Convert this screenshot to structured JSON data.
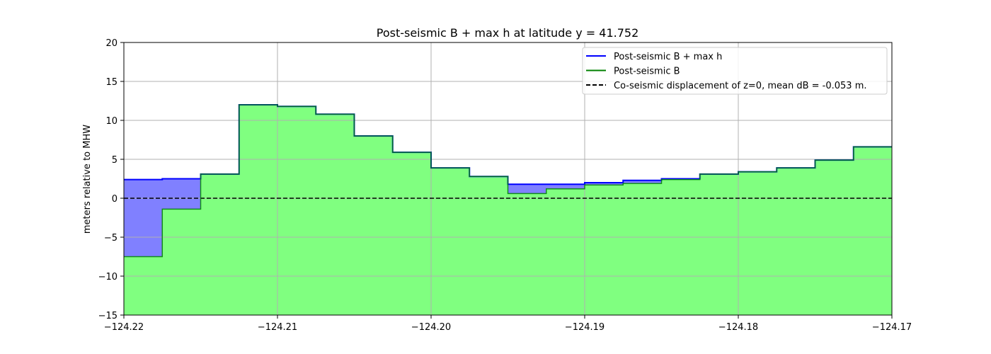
{
  "chart_data": {
    "type": "area",
    "title": "Post-seismic B + max h at latitude y = 41.752",
    "xlabel": "",
    "ylabel": "meters relative to MHW",
    "xlim": [
      -124.22,
      -124.17
    ],
    "ylim": [
      -15,
      20
    ],
    "grid": true,
    "legend_placement": "top-right",
    "x_ticks": [
      "−124.22",
      "−124.21",
      "−124.20",
      "−124.19",
      "−124.18",
      "−124.17"
    ],
    "x_tick_values": [
      -124.22,
      -124.21,
      -124.2,
      -124.19,
      -124.18,
      -124.17
    ],
    "y_ticks": [
      "−15",
      "−10",
      "−5",
      "0",
      "5",
      "10",
      "15",
      "20"
    ],
    "y_tick_values": [
      -15,
      -10,
      -5,
      0,
      5,
      10,
      15,
      20
    ],
    "x": [
      -124.22,
      -124.2175,
      -124.215,
      -124.2125,
      -124.21,
      -124.2075,
      -124.205,
      -124.2025,
      -124.2,
      -124.1975,
      -124.195,
      -124.1925,
      -124.19,
      -124.1875,
      -124.185,
      -124.1825,
      -124.18,
      -124.1775,
      -124.175,
      -124.1725
    ],
    "x_end": -124.17,
    "series": [
      {
        "name": "Post-seismic B + max h",
        "color": "#0000ff",
        "fill": "#8080ff",
        "values": [
          2.4,
          2.5,
          3.1,
          12.0,
          11.8,
          10.8,
          8.0,
          5.9,
          3.9,
          2.8,
          1.8,
          1.8,
          2.0,
          2.3,
          2.5,
          3.1,
          3.4,
          3.9,
          4.9,
          6.6
        ]
      },
      {
        "name": "Post-seismic B",
        "color": "#008000",
        "fill": "#80ff80",
        "values": [
          -7.5,
          -1.4,
          3.1,
          12.0,
          11.8,
          10.8,
          8.0,
          5.9,
          3.9,
          2.8,
          0.6,
          1.2,
          1.7,
          1.9,
          2.4,
          3.1,
          3.4,
          3.9,
          4.9,
          6.6
        ]
      }
    ],
    "reference_line": {
      "name": "Co-seismic displacement of z=0, mean dB = -0.053 m.",
      "value": 0,
      "color": "#000000",
      "style": "dashed"
    },
    "colors": {
      "grid": "#b0b0b0",
      "axes": "#000000",
      "background": "#ffffff",
      "legend_border": "#cccccc"
    }
  }
}
